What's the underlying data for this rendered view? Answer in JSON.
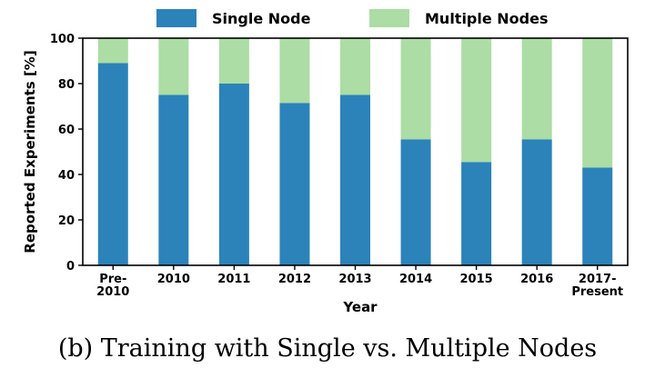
{
  "caption": "(b) Training with Single vs. Multiple Nodes",
  "colors": {
    "single": "#2b83ba",
    "multiple": "#abdda4"
  },
  "chart_data": {
    "type": "bar",
    "stacked": true,
    "categories": [
      [
        "Pre-",
        "2010"
      ],
      [
        "2010"
      ],
      [
        "2011"
      ],
      [
        "2012"
      ],
      [
        "2013"
      ],
      [
        "2014"
      ],
      [
        "2015"
      ],
      [
        "2016"
      ],
      [
        "2017-",
        "Present"
      ]
    ],
    "series": [
      {
        "name": "Single Node",
        "values": [
          89,
          75,
          80,
          71.5,
          75,
          55.5,
          45.5,
          55.5,
          43
        ]
      },
      {
        "name": "Multiple Nodes",
        "values": [
          11,
          25,
          20,
          28.5,
          25,
          44.5,
          54.5,
          44.5,
          57
        ]
      }
    ],
    "xlabel": "Year",
    "ylabel": "Reported Experiments [%]",
    "ylim": [
      0,
      100
    ],
    "yticks": [
      0,
      20,
      40,
      60,
      80,
      100
    ],
    "legend": "top-center",
    "grid": false
  }
}
